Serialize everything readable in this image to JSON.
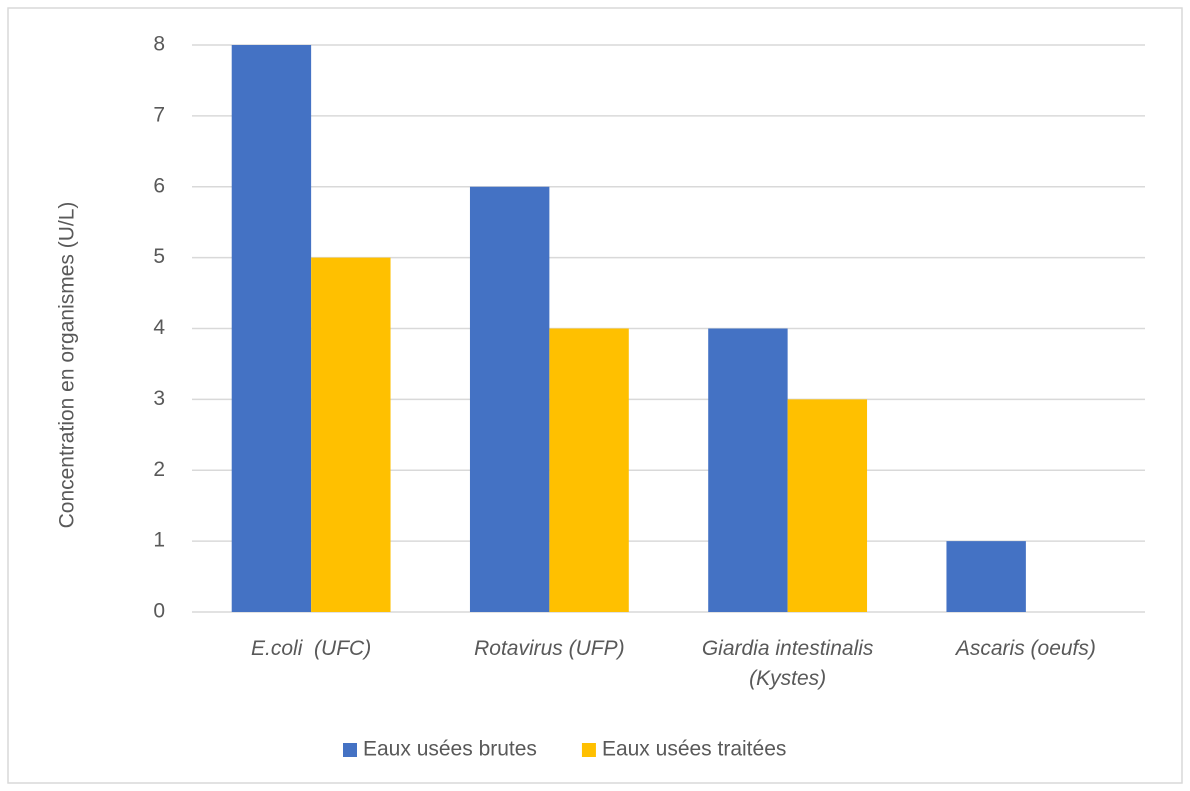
{
  "chart_data": {
    "type": "bar",
    "y_label": "Concentration en organismes (U/L)",
    "categories": [
      "E.coli  (UFC)",
      "Rotavirus (UFP)",
      "Giardia intestinalis (Kystes)",
      "Ascaris (oeufs)"
    ],
    "series": [
      {
        "name": "Eaux usées brutes",
        "color": "#4472c4",
        "values": [
          8,
          6,
          4,
          1
        ]
      },
      {
        "name": "Eaux usées traitées",
        "color": "#ffc000",
        "values": [
          5,
          4,
          3,
          0
        ]
      }
    ],
    "ylim": [
      0,
      8
    ],
    "yticks": [
      0,
      1,
      2,
      3,
      4,
      5,
      6,
      7,
      8
    ],
    "grid": true,
    "legend": "bottom"
  }
}
